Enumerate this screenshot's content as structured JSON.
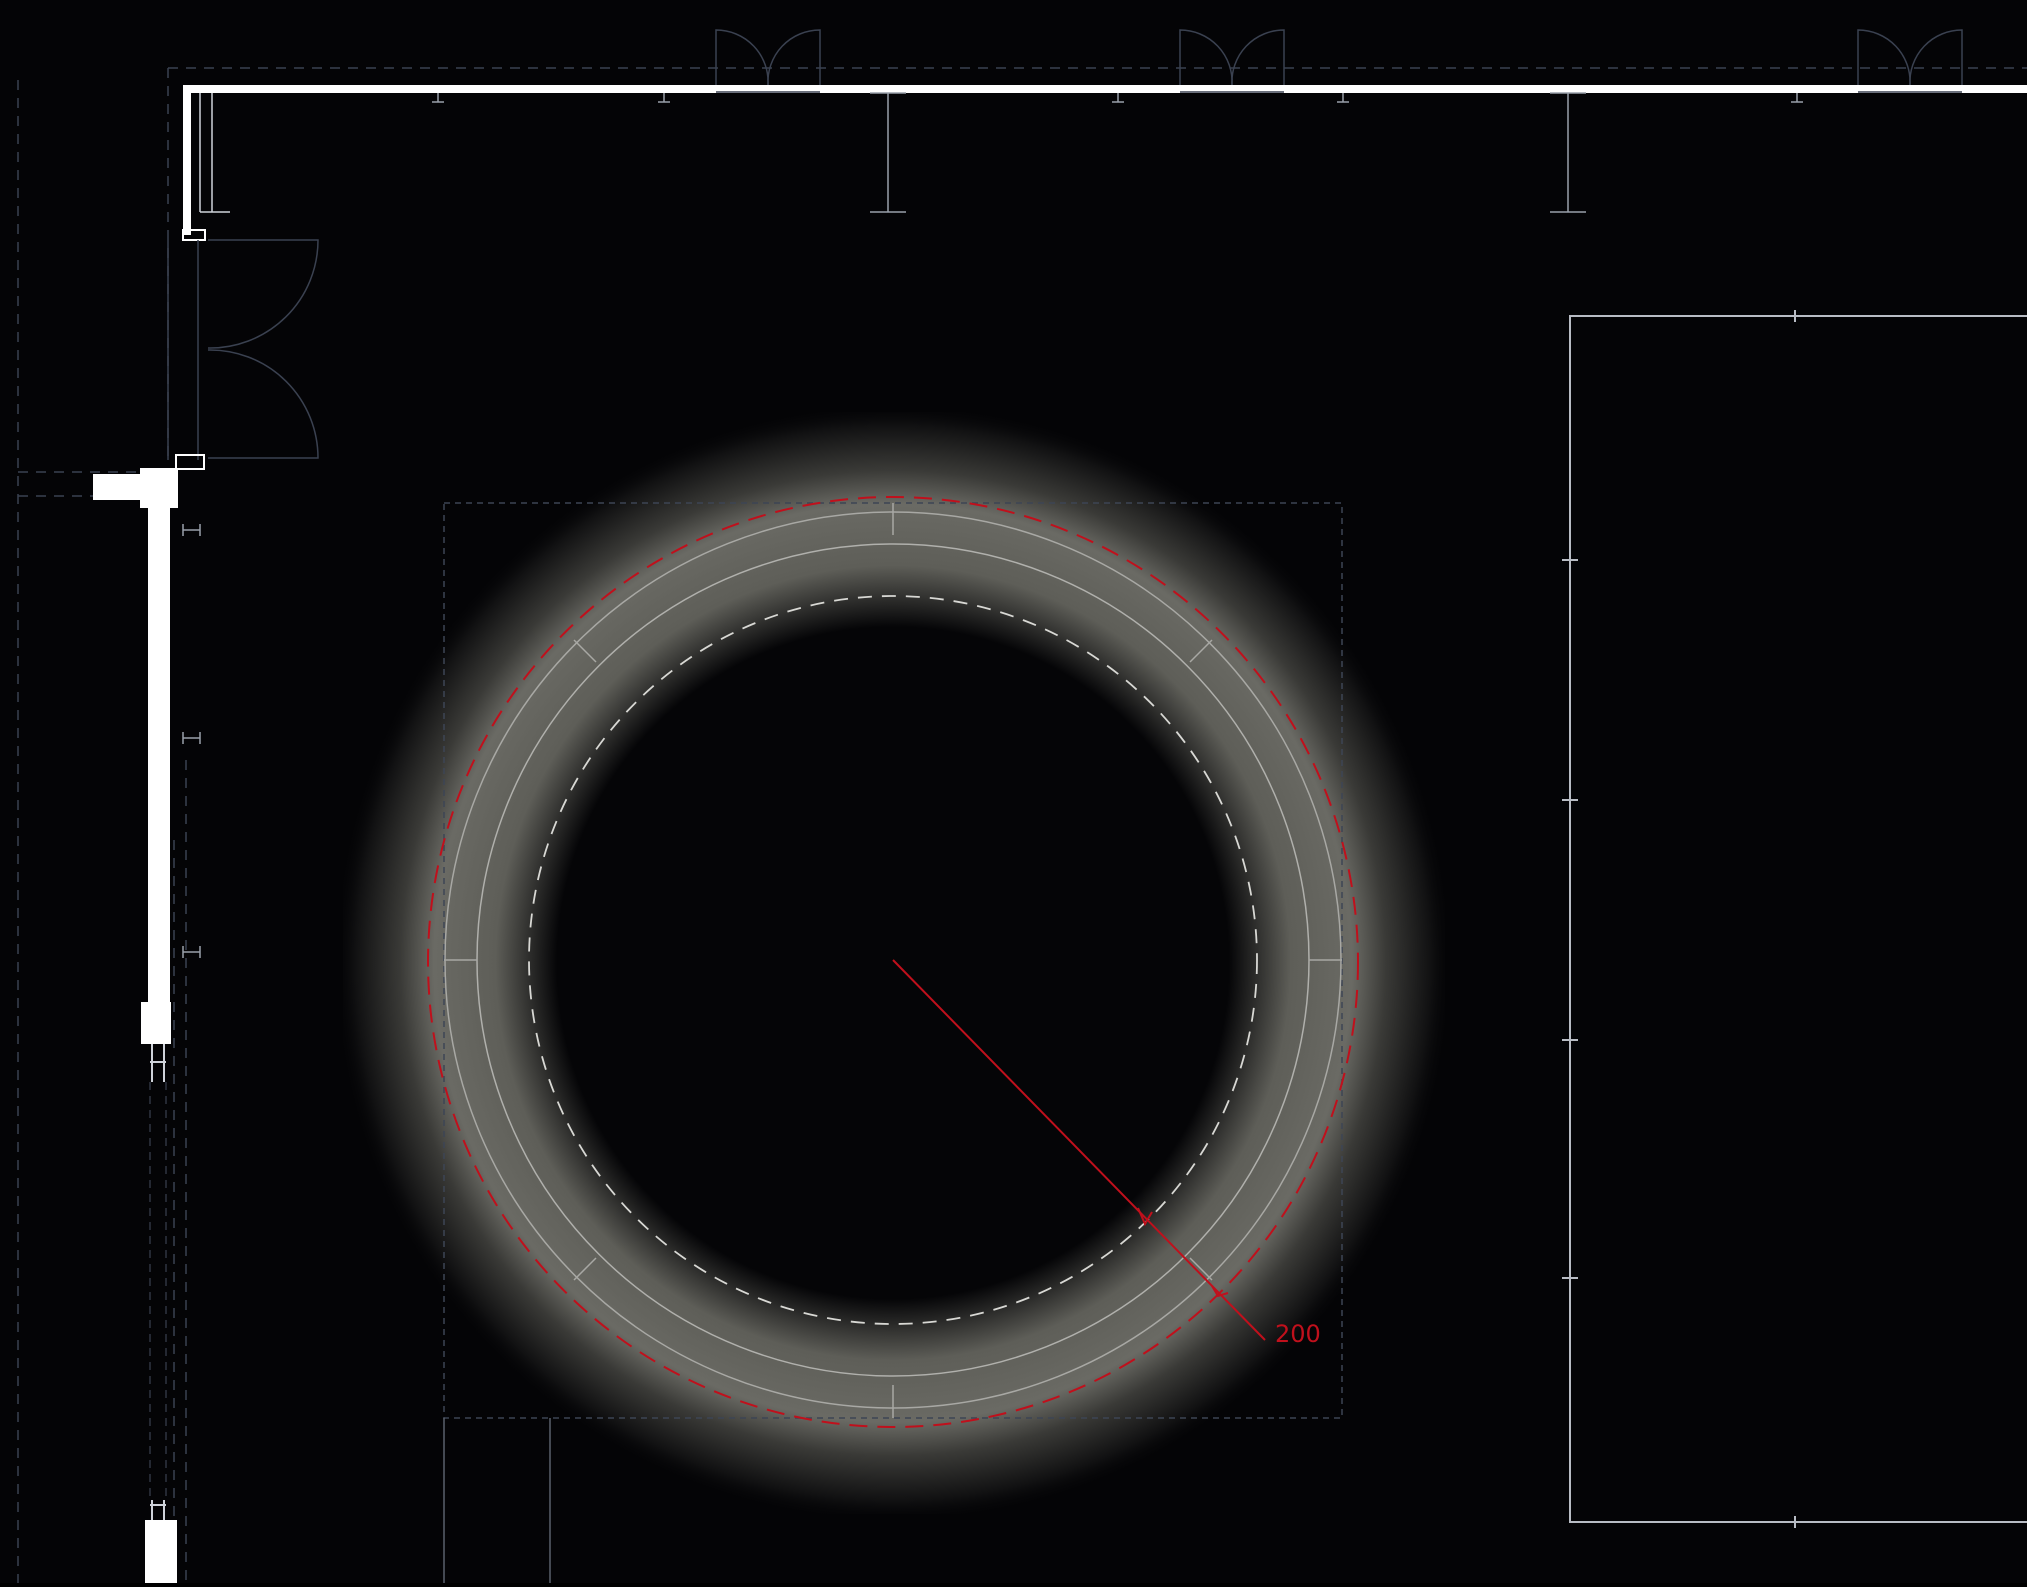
{
  "drawing": {
    "type": "cad-floor-plan-dark",
    "background": "#040406",
    "wall_color": "#ffffff",
    "linework_color": "#8a8f98",
    "dashed_outline_color": "#4a5260",
    "lighting_glow_color": "#8a8a80",
    "annotation_color": "#c0101c"
  },
  "lighting_feature": {
    "shape": "ring",
    "dimension_label": "200"
  }
}
